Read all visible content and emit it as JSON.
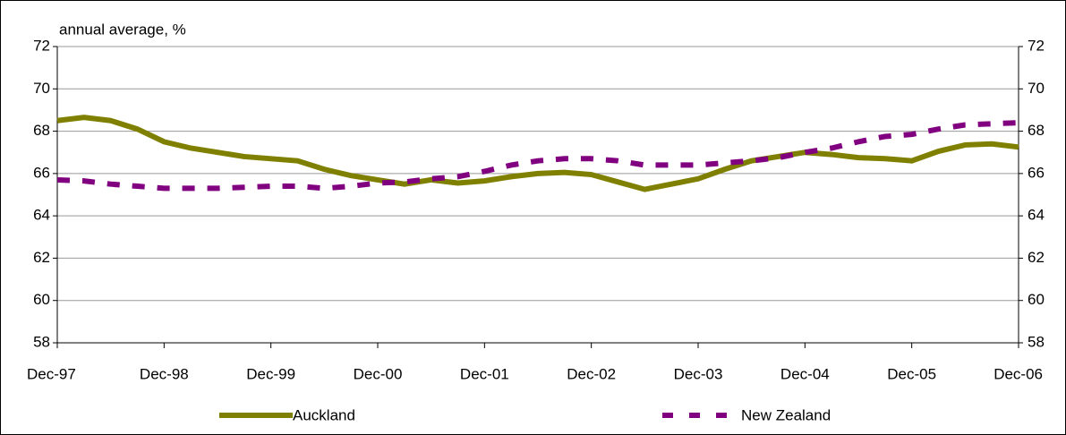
{
  "chart_data": {
    "type": "line",
    "y_label": "annual average, %",
    "categories": [
      "Dec-97",
      null,
      null,
      null,
      "Dec-98",
      null,
      null,
      null,
      "Dec-99",
      null,
      null,
      null,
      "Dec-00",
      null,
      null,
      null,
      "Dec-01",
      null,
      null,
      null,
      "Dec-02",
      null,
      null,
      null,
      "Dec-03",
      null,
      null,
      null,
      "Dec-04",
      null,
      null,
      null,
      "Dec-05",
      null,
      null,
      null,
      "Dec-06"
    ],
    "series": [
      {
        "name": "Auckland",
        "color": "#808000",
        "dashed": false,
        "values": [
          68.5,
          68.65,
          68.5,
          68.1,
          67.5,
          67.2,
          67.0,
          66.8,
          66.7,
          66.6,
          66.2,
          65.9,
          65.7,
          65.5,
          65.7,
          65.55,
          65.65,
          65.85,
          66.0,
          66.05,
          65.95,
          65.6,
          65.25,
          65.5,
          65.75,
          66.2,
          66.6,
          66.8,
          67.0,
          66.9,
          66.75,
          66.7,
          66.6,
          67.05,
          67.35,
          67.4,
          67.25
        ]
      },
      {
        "name": "New Zealand",
        "color": "#800080",
        "dashed": true,
        "values": [
          65.7,
          65.65,
          65.5,
          65.4,
          65.3,
          65.3,
          65.3,
          65.35,
          65.4,
          65.4,
          65.3,
          65.4,
          65.55,
          65.6,
          65.75,
          65.85,
          66.1,
          66.4,
          66.6,
          66.7,
          66.7,
          66.6,
          66.4,
          66.4,
          66.4,
          66.5,
          66.6,
          66.75,
          67.0,
          67.2,
          67.5,
          67.75,
          67.85,
          68.1,
          68.3,
          68.35,
          68.4
        ]
      }
    ],
    "ylim": [
      58,
      72
    ],
    "yticks": [
      58,
      60,
      62,
      64,
      66,
      68,
      70,
      72
    ],
    "y2lim": [
      58,
      72
    ],
    "y2ticks": [
      58,
      60,
      62,
      64,
      66,
      68,
      70,
      72
    ],
    "grid": true,
    "legend": "bottom"
  }
}
